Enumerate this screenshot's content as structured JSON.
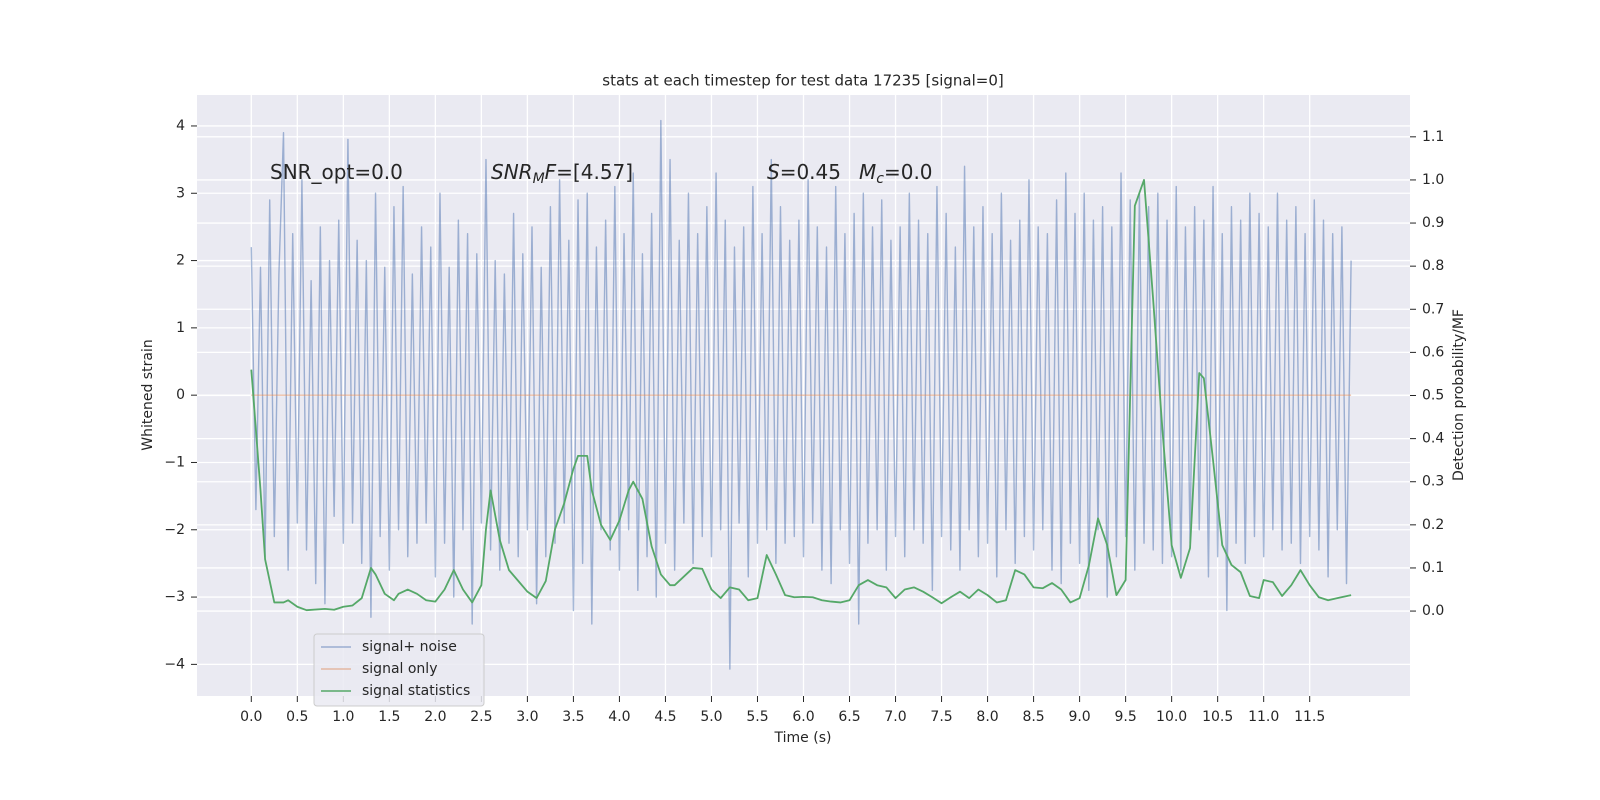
{
  "chart_data": {
    "type": "line",
    "title": "stats at each timestep for test data 17235 [signal=0]",
    "x_label": "Time (s)",
    "y_label": "Whitened strain",
    "y2_label": "Detection probability/MF",
    "xlim": [
      -0.59,
      12.59
    ],
    "ylim": [
      -4.47,
      4.46
    ],
    "y2lim": [
      -0.197,
      1.197
    ],
    "xticks": [
      {
        "value": 0,
        "label": "0.0"
      },
      0.5,
      {
        "value": 1,
        "label": "1.0"
      },
      1.5,
      {
        "value": 2,
        "label": "2.0"
      },
      2.5,
      {
        "value": 3,
        "label": "3.0"
      },
      3.5,
      {
        "value": 4,
        "label": "4.0"
      },
      4.5,
      {
        "value": 5,
        "label": "5.0"
      },
      5.5,
      {
        "value": 6,
        "label": "6.0"
      },
      6.5,
      {
        "value": 7,
        "label": "7.0"
      },
      7.5,
      {
        "value": 8,
        "label": "8.0"
      },
      8.5,
      {
        "value": 9,
        "label": "9.0"
      },
      9.5,
      {
        "value": 10,
        "label": "10.0"
      },
      10.5,
      {
        "value": 11,
        "label": "11.0"
      },
      11.5
    ],
    "yticks": [
      {
        "value": -4,
        "label": "−4"
      },
      {
        "value": -3,
        "label": "−3"
      },
      {
        "value": -2,
        "label": "−2"
      },
      {
        "value": -1,
        "label": "−1"
      },
      0,
      1,
      2,
      3,
      4
    ],
    "y2ticks": [
      {
        "value": 0,
        "label": "0.0"
      },
      0.1,
      0.2,
      0.3,
      0.4,
      0.5,
      0.6,
      0.7,
      0.8,
      0.9,
      {
        "value": 1,
        "label": "1.0"
      },
      1.1
    ],
    "grid": true,
    "legend": "lower left",
    "annotations": [
      [
        {
          "text": "SNR_opt=0.0"
        }
      ],
      [
        {
          "text": "SNR",
          "italic": true
        },
        {
          "text": "M",
          "italic": true,
          "sub": true
        },
        {
          "text": "F",
          "italic": true
        },
        {
          "text": "=[4.57]"
        }
      ],
      [
        {
          "text": "S",
          "italic": true
        },
        {
          "text": "=0.45"
        }
      ],
      [
        {
          "text": "M",
          "italic": true
        },
        {
          "text": "c",
          "italic": true,
          "sub": true
        },
        {
          "text": "=0.0"
        }
      ]
    ],
    "series": [
      {
        "name": "signal+ noise",
        "color": "#4c72b0",
        "opacity": 0.5,
        "x": [
          0,
          0.05,
          0.1,
          0.15,
          0.2,
          0.25,
          0.3,
          0.35,
          0.4,
          0.45,
          0.5,
          0.55,
          0.6,
          0.65,
          0.7,
          0.75,
          0.8,
          0.85,
          0.9,
          0.95,
          1,
          1.05,
          1.1,
          1.15,
          1.2,
          1.25,
          1.3,
          1.35,
          1.4,
          1.45,
          1.5,
          1.55,
          1.6,
          1.65,
          1.7,
          1.75,
          1.8,
          1.85,
          1.9,
          1.95,
          2,
          2.05,
          2.1,
          2.15,
          2.2,
          2.25,
          2.3,
          2.35,
          2.4,
          2.45,
          2.5,
          2.55,
          2.6,
          2.65,
          2.7,
          2.75,
          2.8,
          2.85,
          2.9,
          2.95,
          3,
          3.05,
          3.1,
          3.15,
          3.2,
          3.25,
          3.3,
          3.35,
          3.4,
          3.45,
          3.5,
          3.55,
          3.6,
          3.65,
          3.7,
          3.75,
          3.8,
          3.85,
          3.9,
          3.95,
          4,
          4.05,
          4.1,
          4.15,
          4.2,
          4.25,
          4.3,
          4.35,
          4.4,
          4.45,
          4.5,
          4.55,
          4.6,
          4.65,
          4.7,
          4.75,
          4.8,
          4.85,
          4.9,
          4.95,
          5,
          5.05,
          5.1,
          5.15,
          5.2,
          5.25,
          5.3,
          5.35,
          5.4,
          5.45,
          5.5,
          5.55,
          5.6,
          5.65,
          5.7,
          5.75,
          5.8,
          5.85,
          5.9,
          5.95,
          6,
          6.05,
          6.1,
          6.15,
          6.2,
          6.25,
          6.3,
          6.35,
          6.4,
          6.45,
          6.5,
          6.55,
          6.6,
          6.65,
          6.7,
          6.75,
          6.8,
          6.85,
          6.9,
          6.95,
          7,
          7.05,
          7.1,
          7.15,
          7.2,
          7.25,
          7.3,
          7.35,
          7.4,
          7.45,
          7.5,
          7.55,
          7.6,
          7.65,
          7.7,
          7.75,
          7.8,
          7.85,
          7.9,
          7.95,
          8,
          8.05,
          8.1,
          8.15,
          8.2,
          8.25,
          8.3,
          8.35,
          8.4,
          8.45,
          8.5,
          8.55,
          8.6,
          8.65,
          8.7,
          8.75,
          8.8,
          8.85,
          8.9,
          8.95,
          9,
          9.05,
          9.1,
          9.15,
          9.2,
          9.25,
          9.3,
          9.35,
          9.4,
          9.45,
          9.5,
          9.55,
          9.6,
          9.65,
          9.7,
          9.75,
          9.8,
          9.85,
          9.9,
          9.95,
          10,
          10.05,
          10.1,
          10.15,
          10.2,
          10.25,
          10.3,
          10.35,
          10.4,
          10.45,
          10.5,
          10.55,
          10.6,
          10.65,
          10.7,
          10.75,
          10.8,
          10.85,
          10.9,
          10.95,
          11,
          11.05,
          11.1,
          11.15,
          11.2,
          11.25,
          11.3,
          11.35,
          11.4,
          11.45,
          11.5,
          11.55,
          11.6,
          11.65,
          11.7,
          11.75,
          11.8,
          11.85,
          11.9,
          11.95
        ],
        "values": [
          2.2,
          -1.7,
          1.9,
          -2.4,
          2.9,
          -2.1,
          1.8,
          3.9,
          -2.6,
          2.4,
          -1.9,
          3.2,
          -2.3,
          1.7,
          -2.8,
          2.5,
          -3.1,
          2.0,
          -1.8,
          2.6,
          -2.2,
          3.8,
          -1.9,
          2.3,
          -2.5,
          2.0,
          -3.3,
          3.0,
          -2.1,
          1.9,
          -2.6,
          2.8,
          -2.0,
          3.1,
          -2.4,
          1.8,
          -2.2,
          2.5,
          -1.9,
          2.2,
          -2.7,
          3.0,
          -2.2,
          1.9,
          -3.0,
          2.6,
          -2.0,
          2.4,
          -3.4,
          2.1,
          -1.9,
          3.5,
          -2.3,
          2.0,
          -2.6,
          1.8,
          -2.2,
          2.7,
          -2.4,
          2.1,
          -2.0,
          2.5,
          -3.1,
          1.9,
          -2.4,
          2.8,
          -2.2,
          3.2,
          -1.9,
          2.3,
          -3.2,
          2.9,
          -2.5,
          3.0,
          -3.4,
          2.2,
          -2.0,
          2.6,
          -2.3,
          3.1,
          -2.6,
          2.4,
          -2.0,
          3.3,
          -2.9,
          2.1,
          -2.4,
          2.7,
          -3.0,
          4.08,
          -2.2,
          3.5,
          -2.6,
          2.3,
          -1.9,
          3.0,
          -2.5,
          2.4,
          -2.1,
          2.8,
          -2.4,
          3.3,
          -2.0,
          2.6,
          -4.07,
          2.2,
          -1.9,
          2.5,
          -2.7,
          3.1,
          -2.2,
          2.4,
          -2.0,
          3.5,
          -2.5,
          2.8,
          -2.2,
          2.3,
          -2.1,
          2.6,
          -2.4,
          3.2,
          -1.9,
          2.5,
          -2.6,
          2.2,
          -2.8,
          3.1,
          -2.0,
          2.4,
          -2.5,
          2.7,
          -3.4,
          3.0,
          -2.2,
          2.5,
          -2.0,
          2.9,
          -2.6,
          2.3,
          -2.1,
          2.5,
          -2.4,
          3.0,
          -2.0,
          2.6,
          -2.2,
          2.4,
          -2.9,
          3.1,
          -2.1,
          2.7,
          -2.3,
          2.2,
          -2.6,
          3.4,
          -2.0,
          2.5,
          -2.4,
          2.8,
          -2.2,
          2.4,
          -2.7,
          3.0,
          -2.0,
          2.3,
          -2.5,
          2.6,
          -2.1,
          3.2,
          -2.3,
          2.5,
          -2.0,
          2.4,
          -2.6,
          2.9,
          -2.8,
          3.3,
          -2.2,
          2.7,
          -2.5,
          3.0,
          -2.9,
          2.6,
          -2.0,
          2.8,
          -3.0,
          2.5,
          -2.4,
          3.3,
          -2.1,
          2.9,
          -2.6,
          3.0,
          -2.2,
          2.8,
          -2.3,
          3.0,
          -2.5,
          2.6,
          -2.4,
          3.1,
          -2.6,
          2.5,
          -2.2,
          2.8,
          -2.0,
          2.6,
          -2.7,
          3.1,
          -2.4,
          2.4,
          -3.2,
          2.8,
          -2.2,
          2.6,
          -2.5,
          3.0,
          -2.1,
          2.7,
          -2.4,
          2.5,
          -2.0,
          3.0,
          -2.3,
          2.6,
          -2.2,
          2.8,
          -2.5,
          2.4,
          -2.1,
          2.9,
          -2.3,
          2.6,
          -2.7,
          2.4,
          -2.0,
          2.5,
          -2.8,
          2.0
        ]
      },
      {
        "name": "signal only",
        "color": "#dd8452",
        "opacity": 0.5,
        "x": [
          0,
          11.95
        ],
        "values": [
          0,
          0
        ]
      },
      {
        "name": "signal statistics",
        "color": "#55a868",
        "opacity": 1,
        "axis": "y2",
        "x": [
          0,
          0.1,
          0.15,
          0.2,
          0.25,
          0.35,
          0.4,
          0.5,
          0.6,
          0.8,
          0.9,
          1.0,
          1.1,
          1.2,
          1.3,
          1.35,
          1.45,
          1.55,
          1.6,
          1.7,
          1.8,
          1.9,
          2.0,
          2.1,
          2.2,
          2.3,
          2.4,
          2.5,
          2.55,
          2.6,
          2.7,
          2.8,
          2.9,
          3.0,
          3.1,
          3.2,
          3.3,
          3.4,
          3.5,
          3.55,
          3.65,
          3.7,
          3.8,
          3.9,
          4.0,
          4.1,
          4.15,
          4.25,
          4.35,
          4.45,
          4.55,
          4.6,
          4.7,
          4.8,
          4.9,
          5.0,
          5.1,
          5.2,
          5.3,
          5.4,
          5.5,
          5.6,
          5.7,
          5.8,
          5.9,
          6.0,
          6.1,
          6.2,
          6.3,
          6.4,
          6.5,
          6.6,
          6.7,
          6.8,
          6.9,
          7.0,
          7.1,
          7.2,
          7.3,
          7.4,
          7.5,
          7.6,
          7.7,
          7.8,
          7.9,
          8.0,
          8.1,
          8.2,
          8.3,
          8.4,
          8.5,
          8.6,
          8.7,
          8.8,
          8.9,
          9.0,
          9.1,
          9.2,
          9.3,
          9.4,
          9.5,
          9.6,
          9.7,
          9.8,
          9.9,
          10.0,
          10.1,
          10.2,
          10.3,
          10.35,
          10.45,
          10.55,
          10.65,
          10.75,
          10.85,
          10.95,
          11.0,
          11.1,
          11.2,
          11.3,
          11.4,
          11.5,
          11.6,
          11.7,
          11.8,
          11.95
        ],
        "values": [
          0.56,
          0.28,
          0.12,
          0.07,
          0.02,
          0.02,
          0.025,
          0.01,
          0.002,
          0.005,
          0.003,
          0.01,
          0.013,
          0.03,
          0.1,
          0.085,
          0.04,
          0.025,
          0.04,
          0.05,
          0.04,
          0.025,
          0.022,
          0.05,
          0.095,
          0.05,
          0.02,
          0.06,
          0.19,
          0.28,
          0.165,
          0.095,
          0.07,
          0.045,
          0.03,
          0.07,
          0.19,
          0.25,
          0.33,
          0.36,
          0.36,
          0.28,
          0.2,
          0.165,
          0.21,
          0.28,
          0.3,
          0.26,
          0.15,
          0.085,
          0.06,
          0.06,
          0.08,
          0.1,
          0.098,
          0.05,
          0.03,
          0.055,
          0.05,
          0.025,
          0.03,
          0.13,
          0.085,
          0.037,
          0.032,
          0.033,
          0.032,
          0.025,
          0.022,
          0.02,
          0.025,
          0.06,
          0.072,
          0.06,
          0.055,
          0.03,
          0.05,
          0.055,
          0.045,
          0.032,
          0.018,
          0.032,
          0.045,
          0.03,
          0.05,
          0.037,
          0.02,
          0.025,
          0.095,
          0.085,
          0.055,
          0.053,
          0.065,
          0.05,
          0.02,
          0.03,
          0.105,
          0.215,
          0.153,
          0.037,
          0.072,
          0.94,
          1.0,
          0.72,
          0.42,
          0.153,
          0.077,
          0.146,
          0.552,
          0.54,
          0.35,
          0.153,
          0.107,
          0.09,
          0.035,
          0.03,
          0.072,
          0.067,
          0.035,
          0.06,
          0.095,
          0.06,
          0.032,
          0.025,
          0.03,
          0.037
        ]
      }
    ]
  }
}
